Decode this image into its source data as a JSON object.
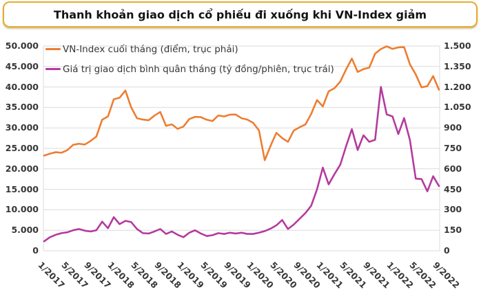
{
  "title": "Thanh khoản giao dịch cổ phiếu đi xuống khi VN-Index giảm",
  "colors": {
    "title_border": "#E5AC2D",
    "vnindex_line": "#ED7D31",
    "liquidity_line": "#B43A9D",
    "grid": "#DBDBDB",
    "axis_text": "#363636",
    "title_text": "#141414",
    "background": "#FFFFFF"
  },
  "legend": [
    {
      "label": "VN-Index cuối tháng (điểm, trục phải)",
      "color": "#ED7D31"
    },
    {
      "label": "Giá trị giao dịch bình quân tháng (tỷ đồng/phiên, trục trái)",
      "color": "#B43A9D"
    }
  ],
  "left_axis": {
    "ticks_top_to_bottom": [
      "50.000",
      "45.000",
      "40.000",
      "35.000",
      "30.000",
      "25.000",
      "20.000",
      "15.000",
      "10.000",
      "5.000",
      "0"
    ]
  },
  "right_axis": {
    "ticks_top_to_bottom": [
      "1.500",
      "1.350",
      "1.200",
      "1.050",
      "900",
      "750",
      "600",
      "450",
      "300",
      "150",
      "0"
    ]
  },
  "x_axis": {
    "tick_labels": [
      "1/2017",
      "5/2017",
      "9/2017",
      "1/2018",
      "5/2018",
      "9/2018",
      "1/2019",
      "5/2019",
      "9/2019",
      "1/2020",
      "5/2020",
      "9/2020",
      "1/2021",
      "5/2021",
      "9/2021",
      "1/2022",
      "5/2022",
      "9/2022"
    ],
    "tick_every_n_months": 4
  },
  "chart_data": {
    "type": "line",
    "title": "Thanh khoản giao dịch cổ phiếu đi xuống khi VN-Index giảm",
    "x": [
      "1/2017",
      "2/2017",
      "3/2017",
      "4/2017",
      "5/2017",
      "6/2017",
      "7/2017",
      "8/2017",
      "9/2017",
      "10/2017",
      "11/2017",
      "12/2017",
      "1/2018",
      "2/2018",
      "3/2018",
      "4/2018",
      "5/2018",
      "6/2018",
      "7/2018",
      "8/2018",
      "9/2018",
      "10/2018",
      "11/2018",
      "12/2018",
      "1/2019",
      "2/2019",
      "3/2019",
      "4/2019",
      "5/2019",
      "6/2019",
      "7/2019",
      "8/2019",
      "9/2019",
      "10/2019",
      "11/2019",
      "12/2019",
      "1/2020",
      "2/2020",
      "3/2020",
      "4/2020",
      "5/2020",
      "6/2020",
      "7/2020",
      "8/2020",
      "9/2020",
      "10/2020",
      "11/2020",
      "12/2020",
      "1/2021",
      "2/2021",
      "3/2021",
      "4/2021",
      "5/2021",
      "6/2021",
      "7/2021",
      "8/2021",
      "9/2021",
      "10/2021",
      "11/2021",
      "12/2021",
      "1/2022",
      "2/2022",
      "3/2022",
      "4/2022",
      "5/2022",
      "6/2022",
      "7/2022",
      "8/2022",
      "9/2022"
    ],
    "left_ylim": [
      0,
      50000
    ],
    "right_ylim": [
      0,
      1500
    ],
    "grid": true,
    "legend_position": "top-left",
    "series": [
      {
        "name": "Giá trị giao dịch bình quân tháng (tỷ đồng/phiên, trục trái)",
        "axis": "left",
        "color": "#B43A9D",
        "values": [
          2300,
          3300,
          3900,
          4300,
          4500,
          5000,
          5300,
          4900,
          4700,
          5000,
          7100,
          5500,
          8200,
          6500,
          7300,
          7000,
          5300,
          4300,
          4200,
          4700,
          5300,
          4100,
          4700,
          3900,
          3300,
          4400,
          5000,
          4200,
          3600,
          3800,
          4300,
          4100,
          4400,
          4200,
          4400,
          4100,
          4100,
          4400,
          4800,
          5400,
          6200,
          7500,
          5300,
          6400,
          7800,
          9200,
          11000,
          15000,
          20300,
          16200,
          18700,
          21000,
          25500,
          29700,
          24600,
          28200,
          26600,
          27100,
          40000,
          33300,
          32800,
          28500,
          32400,
          27000,
          17600,
          17500,
          14500,
          18200,
          15800
        ]
      },
      {
        "name": "VN-Index cuối tháng (điểm, trục phải)",
        "axis": "right",
        "color": "#ED7D31",
        "values": [
          697,
          711,
          722,
          718,
          737,
          776,
          784,
          778,
          804,
          837,
          960,
          984,
          1110,
          1121,
          1174,
          1050,
          971,
          961,
          956,
          990,
          1017,
          915,
          926,
          893,
          910,
          965,
          981,
          979,
          960,
          950,
          991,
          984,
          997,
          998,
          971,
          961,
          937,
          882,
          663,
          769,
          864,
          825,
          798,
          881,
          905,
          925,
          1003,
          1104,
          1057,
          1168,
          1191,
          1239,
          1328,
          1408,
          1310,
          1331,
          1342,
          1444,
          1478,
          1498,
          1479,
          1490,
          1492,
          1366,
          1292,
          1197,
          1206,
          1280,
          1180
        ]
      }
    ]
  }
}
